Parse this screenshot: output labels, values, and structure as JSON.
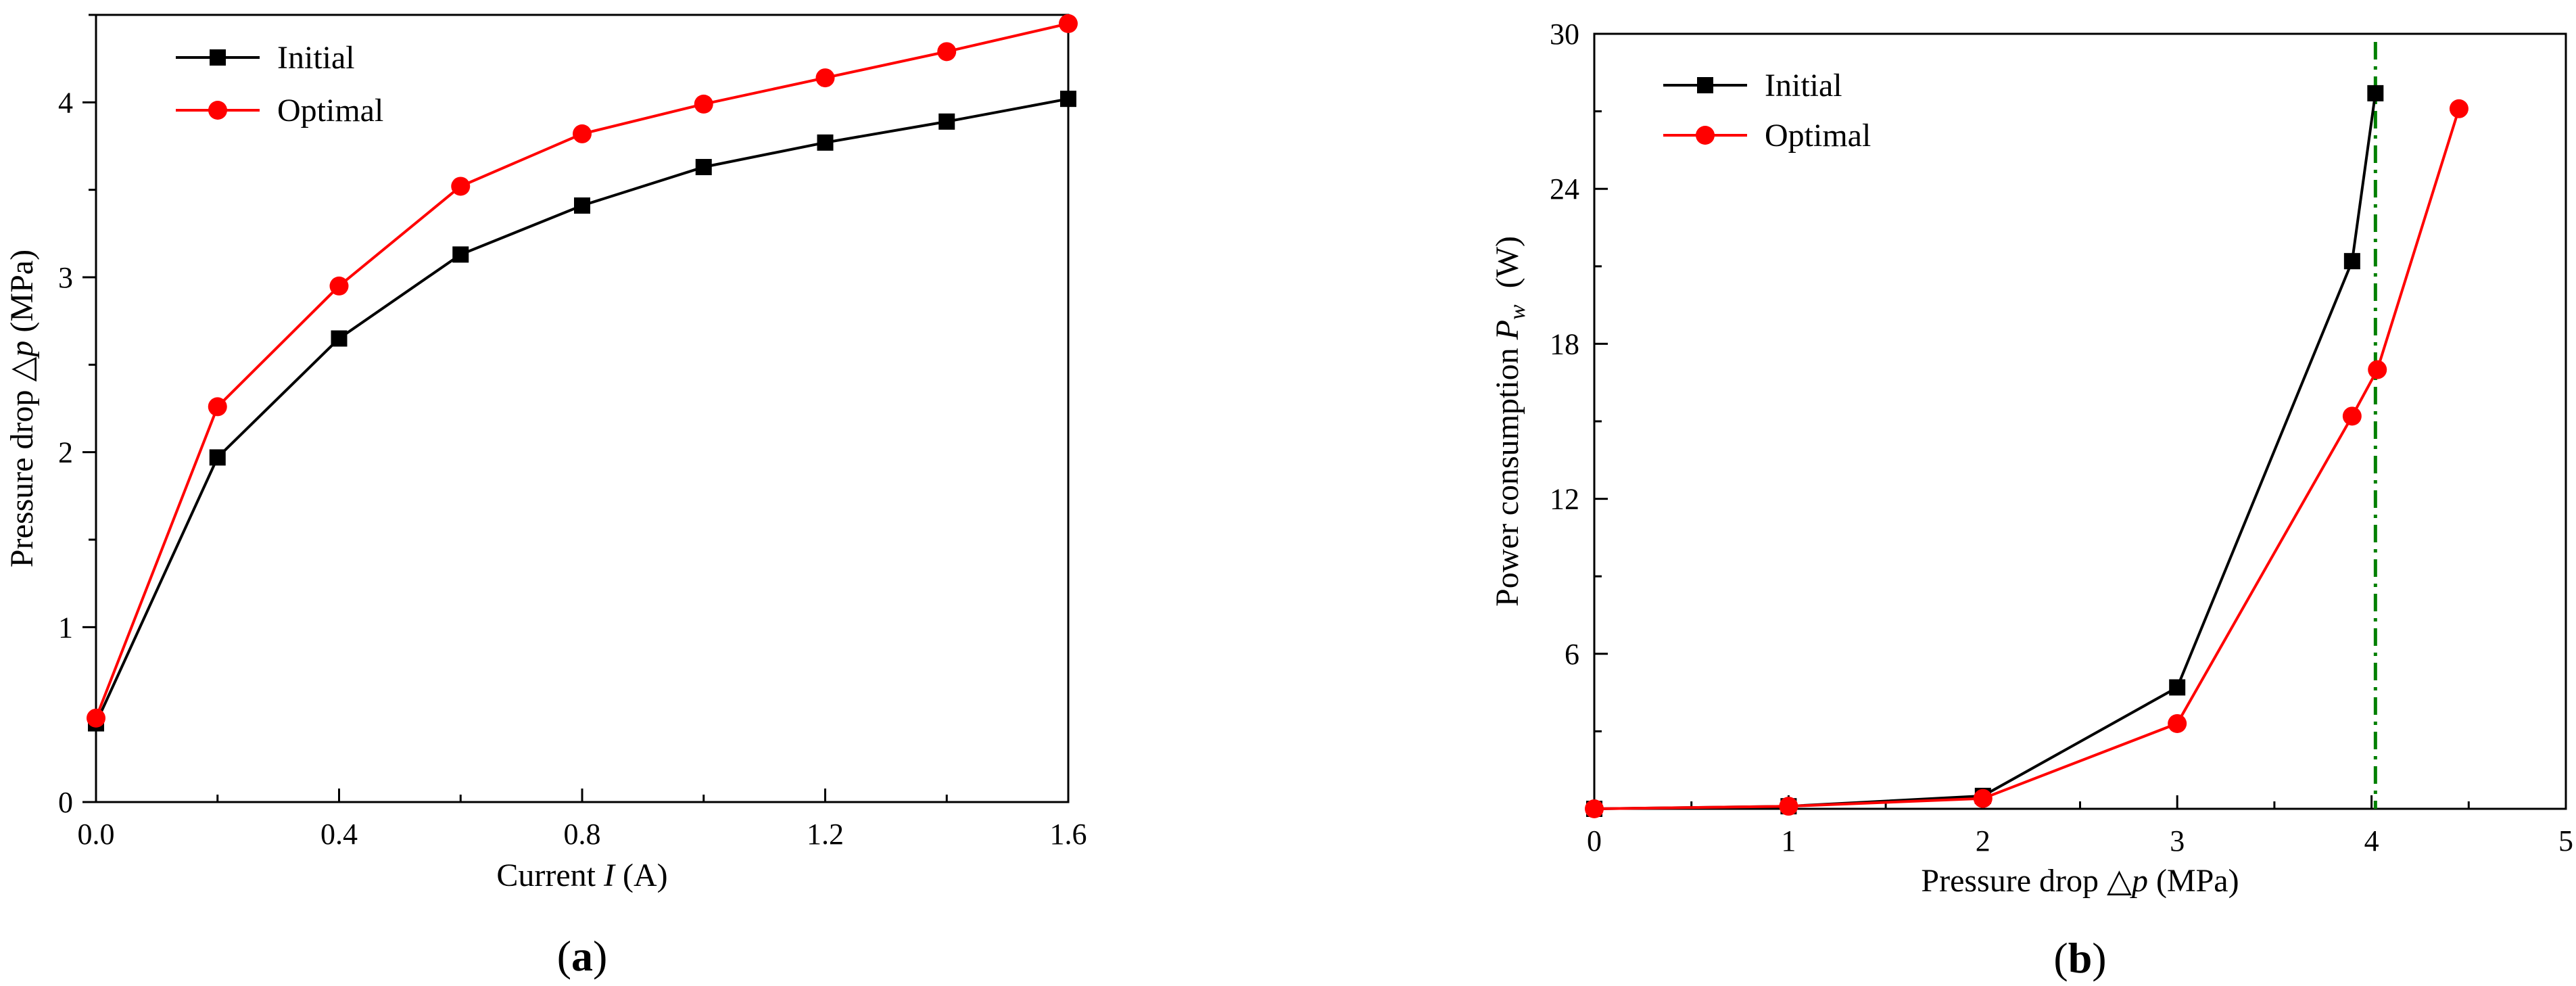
{
  "chart_data": [
    {
      "type": "line",
      "panel_label": "a",
      "xlabel": {
        "main": "Current ",
        "sym": "I",
        "unit": " (A)"
      },
      "ylabel": {
        "main": "Pressure drop ",
        "sym": "p",
        "unit": " (MPa)"
      },
      "xlim": [
        0,
        1.6
      ],
      "ylim": [
        0,
        4.5
      ],
      "xticks": [
        0.0,
        0.4,
        0.8,
        1.2,
        1.6
      ],
      "xtick_labels": [
        "0.0",
        "0.4",
        "0.8",
        "1.2",
        "1.6"
      ],
      "yticks": [
        0,
        1,
        2,
        3,
        4
      ],
      "ytick_labels": [
        "0",
        "1",
        "2",
        "3",
        "4"
      ],
      "legend": "top-left",
      "grid": false,
      "series": [
        {
          "name": "Initial",
          "color": "#000000",
          "marker": "square",
          "x": [
            0.0,
            0.2,
            0.4,
            0.6,
            0.8,
            1.0,
            1.2,
            1.4,
            1.6
          ],
          "y": [
            0.45,
            1.97,
            2.65,
            3.13,
            3.41,
            3.63,
            3.77,
            3.89,
            4.02
          ]
        },
        {
          "name": "Optimal",
          "color": "#ff0000",
          "marker": "circle",
          "x": [
            0.0,
            0.2,
            0.4,
            0.6,
            0.8,
            1.0,
            1.2,
            1.4,
            1.6
          ],
          "y": [
            0.48,
            2.26,
            2.95,
            3.52,
            3.82,
            3.99,
            4.14,
            4.29,
            4.45
          ]
        }
      ]
    },
    {
      "type": "line",
      "panel_label": "b",
      "xlabel": {
        "main": "Pressure drop ",
        "sym": "p",
        "unit": " (MPa)"
      },
      "ylabel": {
        "main": "Power consumption ",
        "sym": "P",
        "sub": "w",
        "unit": " (W)"
      },
      "xlim": [
        0,
        5
      ],
      "ylim": [
        0,
        30
      ],
      "xticks": [
        0,
        1,
        2,
        3,
        4,
        5
      ],
      "xtick_labels": [
        "0",
        "1",
        "2",
        "3",
        "4",
        "5"
      ],
      "yticks": [
        6,
        12,
        18,
        24,
        30
      ],
      "ytick_labels": [
        "6",
        "12",
        "18",
        "24",
        "30"
      ],
      "legend": "top-left",
      "grid": false,
      "reference_line": {
        "x": 4.02,
        "color": "#008000",
        "style": "dash-dot"
      },
      "series": [
        {
          "name": "Initial",
          "color": "#000000",
          "marker": "square",
          "x": [
            0.0,
            1.0,
            2.0,
            3.0,
            3.9,
            4.02
          ],
          "y": [
            0.0,
            0.1,
            0.5,
            4.7,
            21.2,
            27.7
          ]
        },
        {
          "name": "Optimal",
          "color": "#ff0000",
          "marker": "circle",
          "x": [
            0.0,
            1.0,
            2.0,
            3.0,
            3.9,
            4.03,
            4.45
          ],
          "y": [
            0.0,
            0.1,
            0.4,
            3.3,
            15.2,
            17.0,
            27.1
          ]
        }
      ]
    }
  ]
}
